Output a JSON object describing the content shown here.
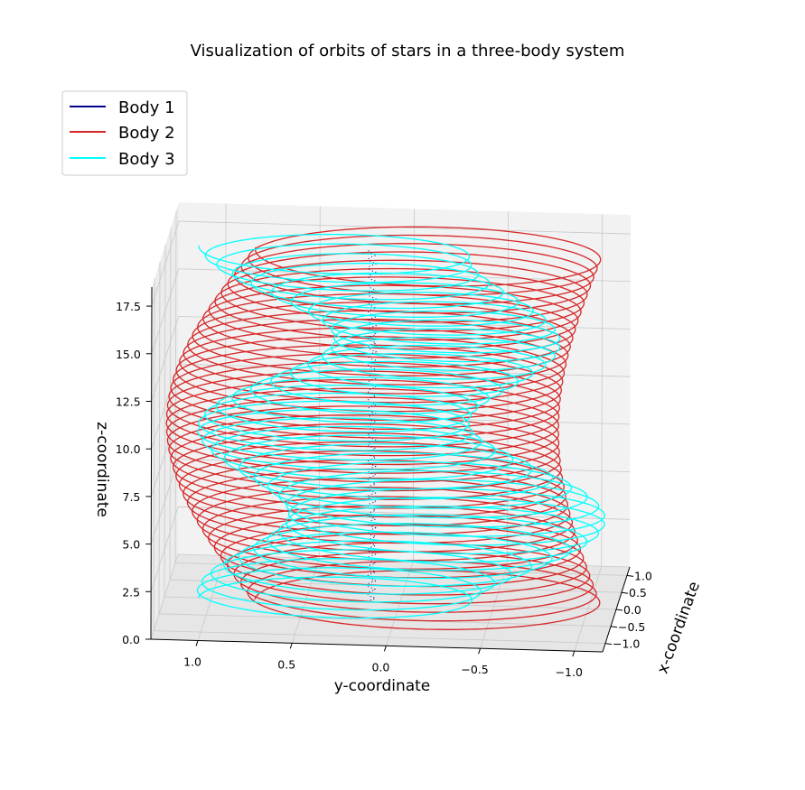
{
  "chart_data": {
    "type": "line",
    "projection": "3d",
    "title": "Visualization of orbits of stars in a three-body system",
    "xlabel": "x-coordinate",
    "ylabel": "y-coordinate",
    "zlabel": "z-coordinate",
    "xlim": [
      -1.25,
      1.25
    ],
    "ylim": [
      -1.15,
      1.25
    ],
    "zlim": [
      0,
      18.5
    ],
    "x_ticks": [
      "−1.0",
      "−0.5",
      "0.0",
      "0.5",
      "1.0"
    ],
    "y_ticks": [
      "1.0",
      "0.5",
      "0.0",
      "−0.5",
      "−1.0"
    ],
    "z_ticks": [
      "0.0",
      "2.5",
      "5.0",
      "7.5",
      "10.0",
      "12.5",
      "15.0",
      "17.5"
    ],
    "grid": true,
    "legend_position": "top-left",
    "series": [
      {
        "name": "Body 1",
        "color": "#00008b",
        "shape": "near-stationary vertical trace at x≈0, y≈0.15 rising with z",
        "radius": 0.02,
        "turns": 40
      },
      {
        "name": "Body 2",
        "color": "#d62728",
        "shape": "helix on a C-shaped (bowed) path",
        "radius": 1.0,
        "turns": 40
      },
      {
        "name": "Body 3",
        "color": "#00ffff",
        "shape": "helix whose center oscillates in y while rising",
        "radius": 0.8,
        "turns": 40
      }
    ],
    "z_range": [
      0,
      18.5
    ]
  }
}
